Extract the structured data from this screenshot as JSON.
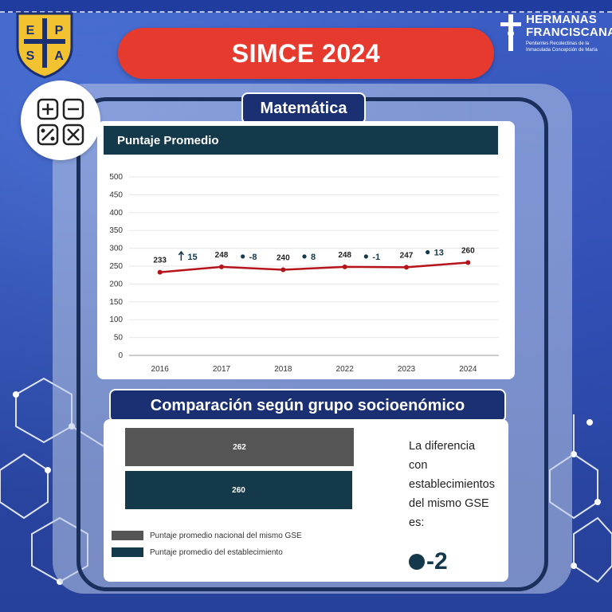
{
  "header": {
    "title": "SIMCE 2024",
    "school_logo_letters": [
      "E",
      "P",
      "S",
      "A"
    ],
    "brand_name_line1": "HERMANAS",
    "brand_name_line2": "FRANCISCANAS",
    "brand_sub_line1": "Penitentes Recolectinas de la",
    "brand_sub_line2": "Inmaculada Concepción de María"
  },
  "subject": {
    "label": "Matemática",
    "icon": "calculator-icon"
  },
  "chart": {
    "header": "Puntaje Promedio"
  },
  "chart_data": {
    "type": "line",
    "title": "Puntaje Promedio",
    "categories": [
      "2016",
      "2017",
      "2018",
      "2022",
      "2023",
      "2024"
    ],
    "series": [
      {
        "values": [
          233,
          248,
          240,
          248,
          247,
          260
        ]
      }
    ],
    "point_labels": [
      "233",
      "248",
      "240",
      "248",
      "247",
      "260"
    ],
    "changes": [
      "15",
      "-8",
      "8",
      "-1",
      "13"
    ],
    "change_symbols": [
      "arrow-up",
      "dot",
      "dot",
      "dot",
      "dot"
    ],
    "y_ticks": [
      "0",
      "50",
      "100",
      "150",
      "200",
      "250",
      "300",
      "350",
      "400",
      "450",
      "500"
    ],
    "ylim": [
      0,
      500
    ],
    "grid": true,
    "line_color": "#b5141b"
  },
  "comparison": {
    "title": "Comparación según grupo socioenómico",
    "bars": [
      {
        "label": "262",
        "value": 262,
        "color": "#555555"
      },
      {
        "label": "260",
        "value": 260,
        "color": "#14394a"
      }
    ],
    "legend": [
      {
        "label": "Puntaje promedio nacional del mismo GSE",
        "color": "#555555"
      },
      {
        "label": "Puntaje promedio del establecimiento",
        "color": "#14394a"
      }
    ],
    "difference_text": [
      "La diferencia",
      "con",
      "establecimientos",
      "del mismo GSE",
      "es:"
    ],
    "difference_value": "-2"
  },
  "colors": {
    "accent_red": "#e53a2d",
    "navy": "#1b2f73",
    "teal_dark": "#14394a"
  }
}
